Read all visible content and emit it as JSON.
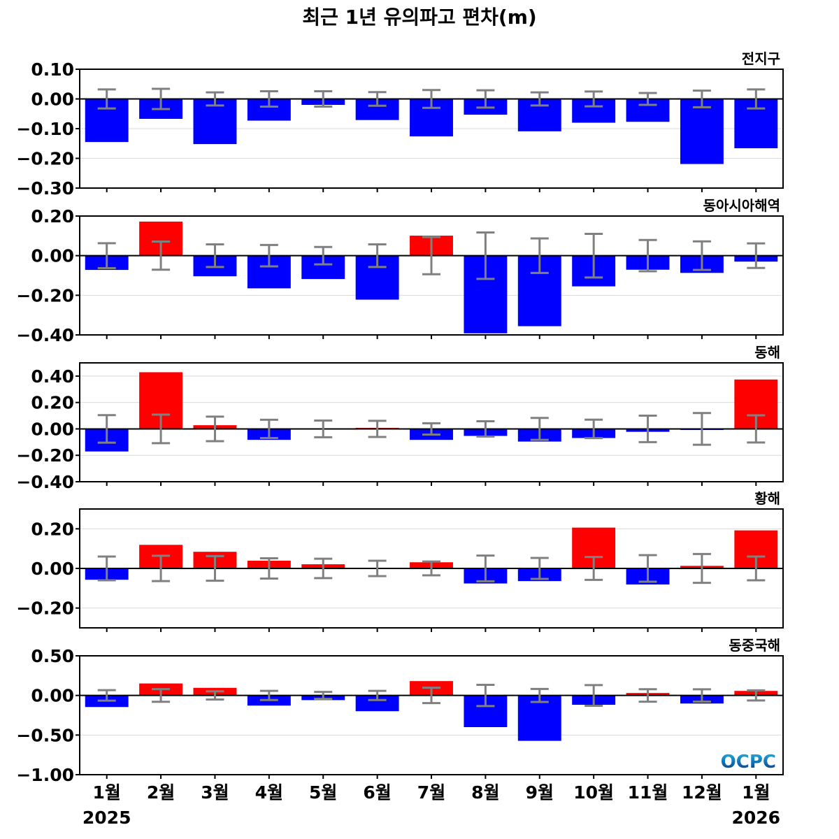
{
  "chart_data": {
    "type": "bar",
    "title": "최근 1년 유의파고 편차(m)",
    "categories": [
      "1월",
      "2월",
      "3월",
      "4월",
      "5월",
      "6월",
      "7월",
      "8월",
      "9월",
      "10월",
      "11월",
      "12월",
      "1월"
    ],
    "year_labels": {
      "start": "2025",
      "end": "2026"
    },
    "positive_color": "#ff0000",
    "negative_color": "#0000ff",
    "error_bar_color": "#808080",
    "grid": true,
    "panels": [
      {
        "name": "전지구",
        "ylim": [
          -0.3,
          0.1
        ],
        "yticks": [
          0.1,
          0.0,
          -0.1,
          -0.2,
          -0.3
        ],
        "ytick_labels": [
          "0.10",
          "0.00",
          "−0.10",
          "−0.20",
          "−0.30"
        ],
        "values": [
          -0.145,
          -0.067,
          -0.152,
          -0.073,
          -0.02,
          -0.071,
          -0.126,
          -0.053,
          -0.109,
          -0.08,
          -0.077,
          -0.219,
          -0.166
        ],
        "errors": [
          0.032,
          0.034,
          0.022,
          0.026,
          0.026,
          0.023,
          0.03,
          0.029,
          0.022,
          0.025,
          0.02,
          0.028,
          0.032
        ]
      },
      {
        "name": "동아시아해역",
        "ylim": [
          -0.4,
          0.2
        ],
        "yticks": [
          0.2,
          0.0,
          -0.2,
          -0.4
        ],
        "ytick_labels": [
          "0.20",
          "0.00",
          "−0.20",
          "−0.40"
        ],
        "values": [
          -0.072,
          0.172,
          -0.104,
          -0.165,
          -0.118,
          -0.222,
          0.101,
          -0.392,
          -0.356,
          -0.155,
          -0.071,
          -0.087,
          -0.03
        ],
        "errors": [
          0.063,
          0.071,
          0.057,
          0.054,
          0.044,
          0.057,
          0.094,
          0.117,
          0.087,
          0.11,
          0.079,
          0.072,
          0.062
        ]
      },
      {
        "name": "동해",
        "ylim": [
          -0.4,
          0.5
        ],
        "yticks": [
          0.4,
          0.2,
          0.0,
          -0.2,
          -0.4
        ],
        "ytick_labels": [
          "0.40",
          "0.20",
          "0.00",
          "−0.20",
          "−0.40"
        ],
        "values": [
          -0.171,
          0.429,
          0.028,
          -0.083,
          0.0,
          0.008,
          -0.083,
          -0.053,
          -0.096,
          -0.069,
          -0.022,
          -0.008,
          0.374
        ],
        "errors": [
          0.104,
          0.108,
          0.093,
          0.069,
          0.063,
          0.061,
          0.043,
          0.058,
          0.083,
          0.07,
          0.1,
          0.12,
          0.103
        ]
      },
      {
        "name": "황해",
        "ylim": [
          -0.3,
          0.3
        ],
        "yticks": [
          0.2,
          0.0,
          -0.2
        ],
        "ytick_labels": [
          "0.20",
          "0.00",
          "−0.20"
        ],
        "values": [
          -0.057,
          0.119,
          0.084,
          0.039,
          0.021,
          -0.003,
          0.031,
          -0.076,
          -0.064,
          0.206,
          -0.081,
          0.013,
          0.192
        ],
        "errors": [
          0.06,
          0.064,
          0.062,
          0.051,
          0.049,
          0.039,
          0.035,
          0.065,
          0.053,
          0.058,
          0.067,
          0.073,
          0.06
        ]
      },
      {
        "name": "동중국해",
        "ylim": [
          -1.0,
          0.5
        ],
        "yticks": [
          0.5,
          0.0,
          -0.5,
          -1.0
        ],
        "ytick_labels": [
          "0.50",
          "0.00",
          "−0.50",
          "−1.00"
        ],
        "values": [
          -0.146,
          0.151,
          0.096,
          -0.128,
          -0.059,
          -0.199,
          0.181,
          -0.4,
          -0.573,
          -0.118,
          0.031,
          -0.102,
          0.057
        ],
        "errors": [
          0.066,
          0.08,
          0.052,
          0.058,
          0.044,
          0.058,
          0.097,
          0.134,
          0.082,
          0.131,
          0.079,
          0.078,
          0.064
        ]
      }
    ]
  },
  "logo": {
    "text": "OCPC",
    "color_top": "#1fb6e8",
    "color_bottom": "#0a2f7a"
  }
}
